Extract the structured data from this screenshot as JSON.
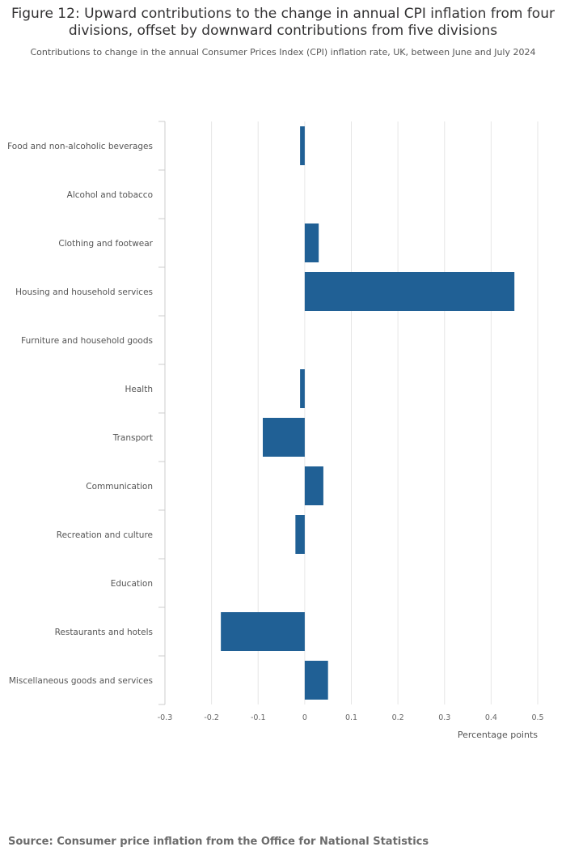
{
  "title": "Figure 12: Upward contributions to the change in annual CPI inflation from four divisions, offset by downward contributions from five divisions",
  "subtitle": "Contributions to change in the annual Consumer Prices Index (CPI) inflation rate, UK, between June and July 2024",
  "source": "Source: Consumer price inflation from the Office for National Statistics",
  "colors": {
    "bar": "#206095",
    "grid": "#e6e6e6",
    "axis": "#cccccc"
  },
  "chart_data": {
    "type": "bar",
    "orientation": "horizontal",
    "title": "Figure 12: Upward contributions to the change in annual CPI inflation from four divisions, offset by downward contributions from five divisions",
    "xlabel": "Percentage points",
    "ylabel": "",
    "xlim": [
      -0.3,
      0.5
    ],
    "xticks": [
      -0.3,
      -0.2,
      -0.1,
      0,
      0.1,
      0.2,
      0.3,
      0.4,
      0.5
    ],
    "xtick_labels": [
      "-0.3",
      "-0.2",
      "-0.1",
      "0",
      "0.1",
      "0.2",
      "0.3",
      "0.4",
      "0.5"
    ],
    "grid": true,
    "categories": [
      "Food and non-alcoholic beverages",
      "Alcohol and tobacco",
      "Clothing and footwear",
      "Housing and household services",
      "Furniture and household goods",
      "Health",
      "Transport",
      "Communication",
      "Recreation and culture",
      "Education",
      "Restaurants and hotels",
      "Miscellaneous goods and services"
    ],
    "values": [
      -0.01,
      0.0,
      0.03,
      0.45,
      0.0,
      -0.01,
      -0.09,
      0.04,
      -0.02,
      0.0,
      -0.18,
      0.05
    ]
  }
}
